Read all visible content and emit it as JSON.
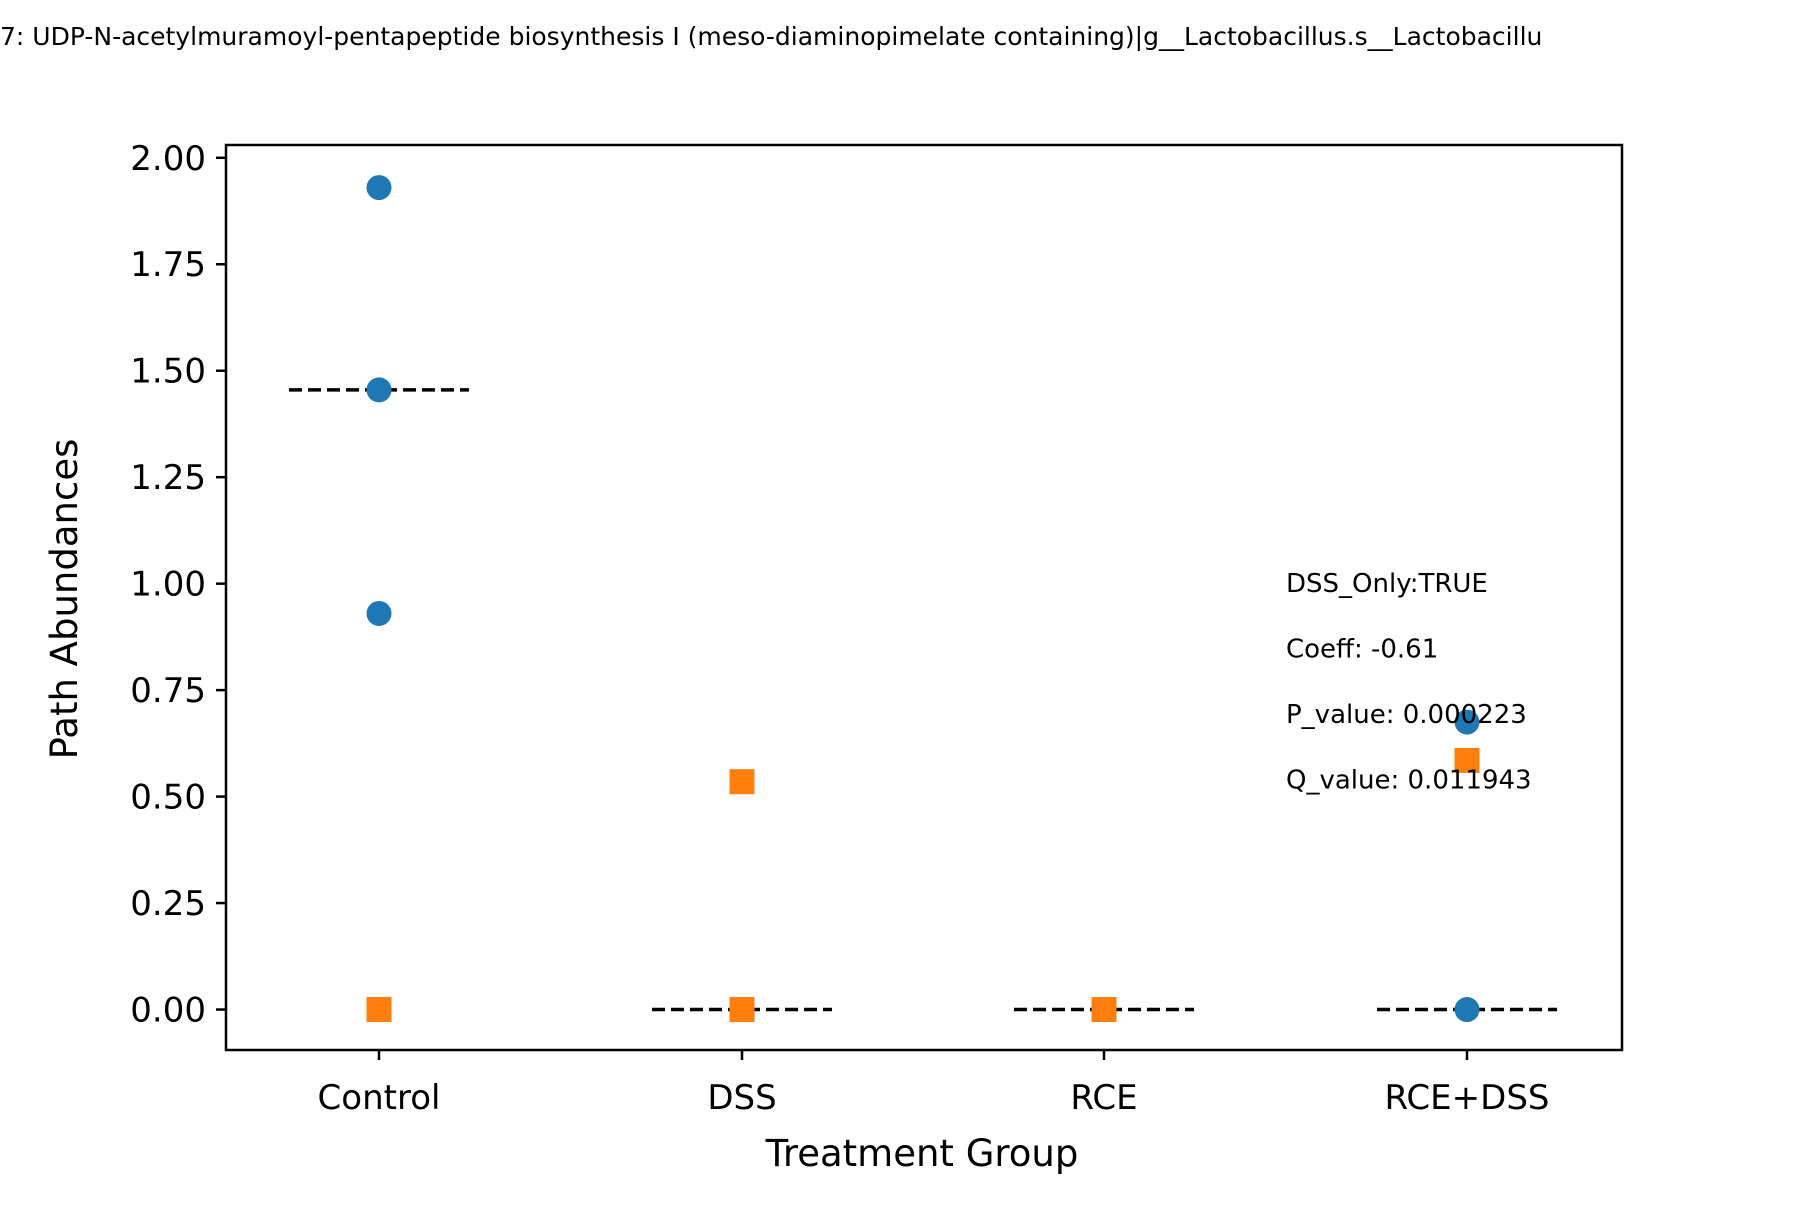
{
  "chart_data": {
    "type": "scatter",
    "title": "7: UDP-N-acetylmuramoyl-pentapeptide biosynthesis I (meso-diaminopimelate containing)|g__Lactobacillus.s__Lactobacillu",
    "xlabel": "Treatment Group",
    "ylabel": "Path Abundances",
    "categories": [
      "Control",
      "DSS",
      "RCE",
      "RCE+DSS"
    ],
    "ylim": [
      -0.095,
      2.03
    ],
    "yticks": [
      0.0,
      0.25,
      0.5,
      0.75,
      1.0,
      1.25,
      1.5,
      1.75,
      2.0
    ],
    "ytick_labels": [
      "0.00",
      "0.25",
      "0.50",
      "0.75",
      "1.00",
      "1.25",
      "1.50",
      "1.75",
      "2.00"
    ],
    "grid": false,
    "series": [
      {
        "marker": "circle",
        "color": "#1f77b4",
        "points": [
          {
            "category": "Control",
            "y": 1.93
          },
          {
            "category": "Control",
            "y": 1.455
          },
          {
            "category": "Control",
            "y": 0.93
          },
          {
            "category": "RCE+DSS",
            "y": 0.675
          },
          {
            "category": "RCE+DSS",
            "y": 0.0
          }
        ]
      },
      {
        "marker": "square",
        "color": "#ff7f0e",
        "points": [
          {
            "category": "Control",
            "y": 0.0
          },
          {
            "category": "DSS",
            "y": 0.535
          },
          {
            "category": "DSS",
            "y": 0.0
          },
          {
            "category": "RCE",
            "y": 0.0
          },
          {
            "category": "RCE+DSS",
            "y": 0.585
          }
        ]
      }
    ],
    "median_lines": [
      {
        "category": "Control",
        "y": 1.455
      },
      {
        "category": "DSS",
        "y": 0.0
      },
      {
        "category": "RCE",
        "y": 0.0
      },
      {
        "category": "RCE+DSS",
        "y": 0.0
      }
    ],
    "median_line_color": "#000000",
    "annotations": [
      "DSS_Only:TRUE",
      "Coeff: -0.61",
      "P_value: 0.000223",
      "Q_value: 0.011943"
    ]
  }
}
